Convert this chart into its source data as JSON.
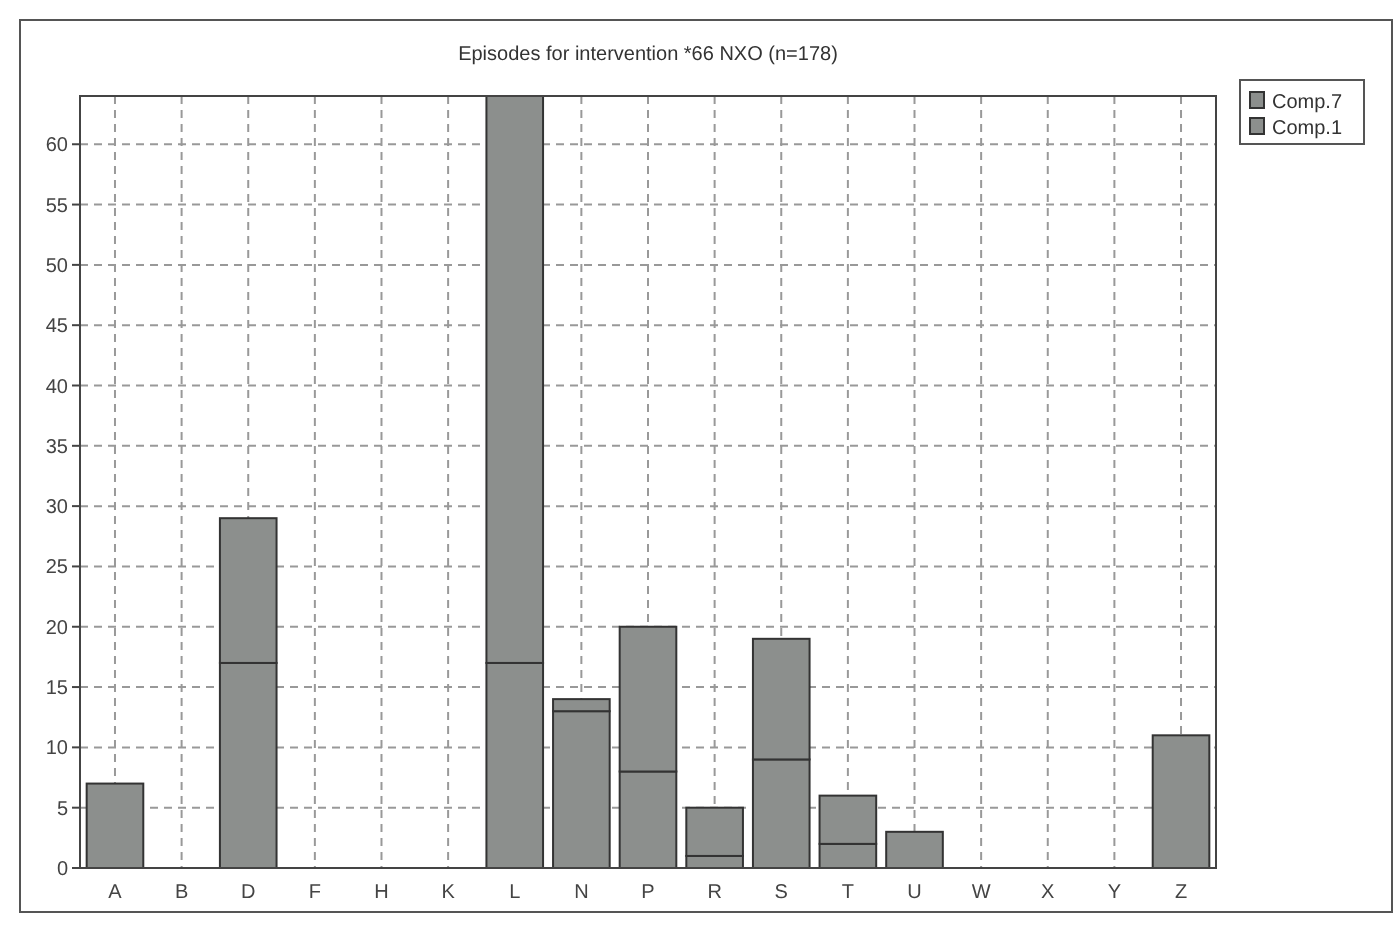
{
  "chart_data": {
    "type": "bar",
    "title": "Episodes for intervention *66 NXO (n=178)",
    "categories": [
      "A",
      "B",
      "D",
      "F",
      "H",
      "K",
      "L",
      "N",
      "P",
      "R",
      "S",
      "T",
      "U",
      "W",
      "X",
      "Y",
      "Z"
    ],
    "series": [
      {
        "name": "Comp.1",
        "color": "#8c8f8d",
        "values": [
          7,
          0,
          17,
          0,
          0,
          0,
          17,
          13,
          8,
          1,
          9,
          2,
          3,
          0,
          0,
          0,
          11
        ]
      },
      {
        "name": "Comp.7",
        "color": "#8c8f8d",
        "values": [
          0,
          0,
          12,
          0,
          0,
          0,
          47,
          1,
          12,
          4,
          10,
          4,
          0,
          0,
          0,
          0,
          0
        ]
      }
    ],
    "stacked": true,
    "ylim": [
      0,
      64
    ],
    "yticks": [
      0,
      5,
      10,
      15,
      20,
      25,
      30,
      35,
      40,
      45,
      50,
      55,
      60
    ],
    "grid": true,
    "legend": "top right"
  }
}
